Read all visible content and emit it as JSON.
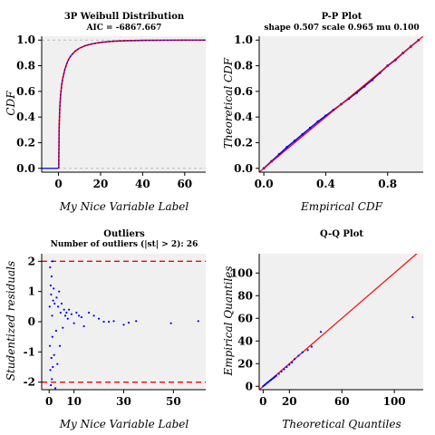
{
  "chart_data": [
    {
      "type": "line",
      "title": "3P Weibull Distribution",
      "subtitle": "AIC = -6867.667",
      "xlabel": "My Nice Variable Label",
      "ylabel": "CDF",
      "xlim": [
        -8,
        70
      ],
      "ylim": [
        -0.03,
        1.03
      ],
      "xticks": [
        0,
        20,
        40,
        60
      ],
      "yticks": [
        0.0,
        0.2,
        0.4,
        0.6,
        0.8,
        1.0
      ],
      "xtick_labels": [
        "0",
        "20",
        "40",
        "60"
      ],
      "ytick_labels": [
        "0.0",
        "0.2",
        "0.4",
        "0.6",
        "0.8",
        "1.0"
      ],
      "grid": false,
      "reference_lines": [
        0,
        1
      ],
      "colors": {
        "empirical": "#0000ff",
        "fitted": "#ff0000",
        "reference": "#bbbbbb"
      },
      "series": [
        {
          "x": [
            0.1,
            0.3,
            0.6,
            1,
            1.5,
            2,
            3,
            4,
            5,
            6,
            8,
            10,
            13,
            16,
            20,
            25,
            30,
            40,
            50,
            60,
            70
          ],
          "y": [
            0.0,
            0.32,
            0.47,
            0.57,
            0.65,
            0.7,
            0.77,
            0.82,
            0.855,
            0.88,
            0.915,
            0.937,
            0.958,
            0.971,
            0.982,
            0.99,
            0.994,
            0.998,
            0.999,
            1.0,
            1.0
          ]
        }
      ]
    },
    {
      "type": "line",
      "title": "P-P Plot",
      "subtitle": "shape 0.507 scale 0.965 mu 0.100",
      "xlabel": "Empirical CDF",
      "ylabel": "Theoretical CDF",
      "xlim": [
        -0.03,
        1.03
      ],
      "ylim": [
        -0.03,
        1.03
      ],
      "xticks": [
        0.0,
        0.4,
        0.8
      ],
      "yticks": [
        0.0,
        0.2,
        0.4,
        0.6,
        0.8,
        1.0
      ],
      "xtick_labels": [
        "0.0",
        "0.4",
        "0.8"
      ],
      "ytick_labels": [
        "0.0",
        "0.2",
        "0.4",
        "0.6",
        "0.8",
        "1.0"
      ],
      "grid": false,
      "colors": {
        "points": "#0000ff",
        "reference": "#ff0000"
      },
      "series": [
        {
          "x": [
            0.0,
            0.05,
            0.1,
            0.15,
            0.2,
            0.25,
            0.3,
            0.35,
            0.4,
            0.45,
            0.5,
            0.55,
            0.6,
            0.65,
            0.7,
            0.75,
            0.8,
            0.85,
            0.9,
            0.95,
            1.0
          ],
          "y": [
            0.0,
            0.055,
            0.11,
            0.165,
            0.215,
            0.265,
            0.315,
            0.365,
            0.41,
            0.455,
            0.5,
            0.545,
            0.59,
            0.64,
            0.69,
            0.745,
            0.8,
            0.845,
            0.9,
            0.95,
            1.0
          ]
        }
      ]
    },
    {
      "type": "scatter",
      "title": "Outliers",
      "subtitle": "Number of outliers (|st| > 2):  26",
      "xlabel": "My Nice Variable Label",
      "ylabel": "Studentized residuals",
      "xlim": [
        -3,
        63
      ],
      "ylim": [
        -2.25,
        2.25
      ],
      "xticks": [
        0,
        10,
        30,
        50
      ],
      "yticks": [
        -2,
        -1,
        0,
        1,
        2
      ],
      "xtick_labels": [
        "0",
        "10",
        "30",
        "50"
      ],
      "ytick_labels": [
        "-2",
        "-1",
        "0",
        "1",
        "2"
      ],
      "grid": false,
      "threshold_lines": [
        -2,
        2
      ],
      "colors": {
        "points": "#0000ff",
        "threshold": "#ff0000"
      },
      "series": [
        {
          "x": [
            0.2,
            0.3,
            0.4,
            0.5,
            0.6,
            0.7,
            0.8,
            0.9,
            1.0,
            1.1,
            1.2,
            1.3,
            1.4,
            1.5,
            1.6,
            1.8,
            2.0,
            2.2,
            2.5,
            2.8,
            3.0,
            3.3,
            3.6,
            4.0,
            4.3,
            4.6,
            5.0,
            5.5,
            6.0,
            6.5,
            7.0,
            7.5,
            8.0,
            9.0,
            10.0,
            11.0,
            12.0,
            13.0,
            14.0,
            16.0,
            18.0,
            20.0,
            22.0,
            24.0,
            26.0,
            30.0,
            32.0,
            35.0,
            49.0,
            60.0
          ],
          "y": [
            0.5,
            -0.8,
            1.8,
            -1.6,
            1.2,
            -2.1,
            0.9,
            -1.2,
            1.5,
            -1.9,
            0.2,
            -0.5,
            2.0,
            -1.5,
            0.7,
            1.1,
            -1.1,
            0.6,
            -2.2,
            -0.3,
            0.8,
            -1.4,
            0.5,
            1.0,
            -0.8,
            0.3,
            0.6,
            -0.2,
            0.4,
            0.2,
            0.3,
            0.1,
            0.4,
            0.25,
            -0.05,
            0.3,
            0.2,
            0.15,
            -0.15,
            0.3,
            0.2,
            0.1,
            0.0,
            0.0,
            0.02,
            -0.1,
            -0.03,
            0.02,
            -0.05,
            0.02
          ]
        }
      ]
    },
    {
      "type": "scatter",
      "title": "Q-Q Plot",
      "subtitle": "",
      "xlabel": "Theoretical Quantiles",
      "ylabel": "Empirical Quantiles",
      "xlim": [
        -3,
        122
      ],
      "ylim": [
        -3,
        117
      ],
      "xticks": [
        0,
        20,
        60,
        100
      ],
      "yticks": [
        0,
        20,
        40,
        60,
        80,
        100
      ],
      "xtick_labels": [
        "0",
        "20",
        "60",
        "100"
      ],
      "ytick_labels": [
        "0",
        "20",
        "40",
        "60",
        "80",
        "100"
      ],
      "grid": false,
      "colors": {
        "points": "#0000ff",
        "reference": "#ff0000"
      },
      "series": [
        {
          "x": [
            0,
            1,
            2,
            3,
            4,
            5,
            6,
            7,
            8,
            9,
            10,
            12,
            14,
            16,
            18,
            20,
            22,
            24,
            27,
            30,
            34,
            37,
            44,
            114
          ],
          "y": [
            0,
            1,
            2,
            3,
            3.8,
            4.8,
            5.7,
            6.6,
            7.5,
            8.4,
            9.3,
            11,
            13,
            15,
            17,
            19,
            21,
            24,
            27,
            30,
            32,
            35,
            48,
            61
          ]
        }
      ]
    }
  ]
}
